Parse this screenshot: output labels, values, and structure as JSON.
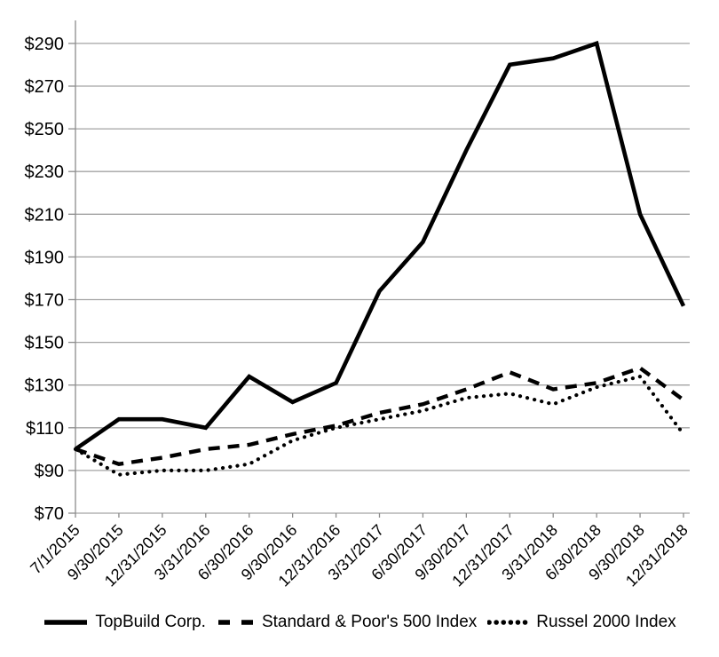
{
  "page": {
    "background": "#ffffff"
  },
  "chart_data": {
    "type": "line",
    "title": "",
    "xlabel": "",
    "ylabel": "",
    "x_labels": [
      "7/1/2015",
      "9/30/2015",
      "12/31/2015",
      "3/31/2016",
      "6/30/2016",
      "9/30/2016",
      "12/31/2016",
      "3/31/2017",
      "6/30/2017",
      "9/30/2017",
      "12/31/2017",
      "3/31/2018",
      "6/30/2018",
      "9/30/2018",
      "12/31/2018"
    ],
    "series": [
      {
        "name": "TopBuild Corp.",
        "line_style": "solid",
        "color": "#000000",
        "values": [
          100,
          114,
          114,
          110,
          134,
          122,
          131,
          174,
          197,
          240,
          280,
          283,
          290,
          210,
          167
        ]
      },
      {
        "name": "Standard & Poor's 500 Index",
        "line_style": "dashed",
        "color": "#000000",
        "values": [
          100,
          93,
          96,
          100,
          102,
          107,
          111,
          117,
          121,
          128,
          136,
          128,
          131,
          138,
          123
        ]
      },
      {
        "name": "Russel 2000 Index",
        "line_style": "dotted",
        "color": "#000000",
        "values": [
          100,
          88,
          90,
          90,
          93,
          104,
          110,
          114,
          118,
          124,
          126,
          121,
          129,
          134,
          107
        ]
      }
    ],
    "y_axis": {
      "min": 70,
      "max": 290,
      "step": 20,
      "tick_prefix": "$",
      "tick_labels": [
        "$70",
        "$90",
        "$110",
        "$130",
        "$150",
        "$170",
        "$190",
        "$210",
        "$230",
        "$250",
        "$270",
        "$290"
      ]
    },
    "ylim": [
      70,
      290
    ],
    "grid": true,
    "legend_position": "bottom",
    "colors": {
      "series": "#000000",
      "grid": "#a3a3a3",
      "axis": "#8c8c8c",
      "text": "#000000"
    }
  }
}
